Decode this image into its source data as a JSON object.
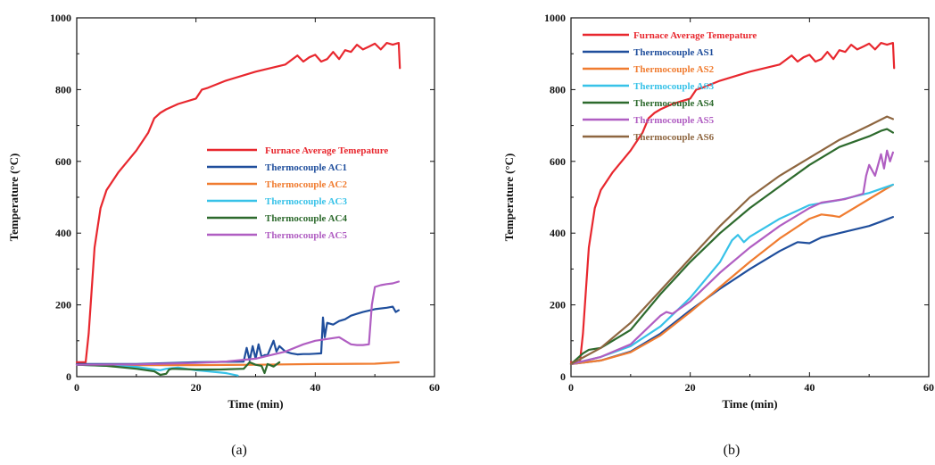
{
  "chart_data": [
    {
      "type": "line",
      "caption": "(a)",
      "xlabel": "Time (min)",
      "ylabel": "Temperature (°C)",
      "xlim": [
        0,
        60
      ],
      "ylim": [
        0,
        1000
      ],
      "xticks": [
        "0",
        "20",
        "40",
        "60"
      ],
      "yticks": [
        "0",
        "200",
        "400",
        "600",
        "800",
        "1000"
      ],
      "legend_position": "center-right",
      "series": [
        {
          "name": "Furnace Average Temepature",
          "color": "#e8272e",
          "x": [
            0,
            1.5,
            2,
            3,
            4,
            5,
            7,
            10,
            12,
            13,
            14,
            15,
            17,
            20,
            21,
            22,
            25,
            30,
            35,
            37,
            38,
            39,
            40,
            41,
            42,
            43,
            44,
            45,
            46,
            47,
            48,
            49,
            50,
            51,
            52,
            53,
            54,
            54.2
          ],
          "y": [
            40,
            40,
            120,
            360,
            470,
            520,
            570,
            630,
            680,
            720,
            735,
            745,
            760,
            775,
            800,
            805,
            825,
            850,
            870,
            895,
            878,
            890,
            897,
            878,
            885,
            905,
            885,
            910,
            905,
            925,
            912,
            920,
            928,
            912,
            930,
            925,
            930,
            860
          ]
        },
        {
          "name": "Thermocouple AC1",
          "color": "#1f4e9c",
          "x": [
            0,
            10,
            20,
            28,
            28.5,
            29,
            29.5,
            30,
            30.5,
            31,
            31.5,
            32,
            33,
            33.5,
            34,
            35,
            36,
            37,
            38,
            39,
            40,
            41,
            41.3,
            41.6,
            42,
            43,
            44,
            45,
            46,
            47,
            48,
            50,
            52,
            53,
            53.5,
            54
          ],
          "y": [
            35,
            35,
            40,
            42,
            80,
            45,
            85,
            50,
            90,
            55,
            60,
            60,
            100,
            70,
            85,
            70,
            65,
            62,
            63,
            63,
            64,
            65,
            165,
            110,
            150,
            145,
            155,
            160,
            170,
            175,
            180,
            188,
            192,
            195,
            180,
            185
          ]
        },
        {
          "name": "Thermocouple AC2",
          "color": "#f07c30",
          "x": [
            0,
            10,
            20,
            30,
            40,
            50,
            54
          ],
          "y": [
            33,
            32,
            32,
            33,
            35,
            36,
            40
          ]
        },
        {
          "name": "Thermocouple AC3",
          "color": "#37c2e8",
          "x": [
            0,
            5,
            10,
            14,
            15,
            17,
            20,
            22,
            25,
            27
          ],
          "y": [
            33,
            30,
            27,
            18,
            22,
            25,
            18,
            15,
            10,
            3
          ]
        },
        {
          "name": "Thermocouple AC4",
          "color": "#2d6a2d",
          "x": [
            0,
            5,
            10,
            13,
            14,
            15,
            15.5,
            16,
            20,
            24,
            28,
            29,
            30,
            31,
            31.5,
            32,
            33,
            34
          ],
          "y": [
            33,
            30,
            22,
            15,
            5,
            8,
            20,
            22,
            20,
            20,
            22,
            40,
            33,
            30,
            10,
            35,
            28,
            40
          ]
        },
        {
          "name": "Thermocouple AC5",
          "color": "#b05ec2",
          "x": [
            0,
            10,
            20,
            25,
            30,
            35,
            38,
            40,
            44,
            46,
            47,
            48,
            49,
            49.5,
            50,
            51,
            52,
            53,
            54
          ],
          "y": [
            33,
            34,
            38,
            42,
            50,
            70,
            90,
            100,
            110,
            90,
            88,
            88,
            90,
            200,
            250,
            255,
            258,
            260,
            265
          ]
        }
      ]
    },
    {
      "type": "line",
      "caption": "(b)",
      "xlabel": "Time (min)",
      "ylabel": "Temperature (°C)",
      "xlim": [
        0,
        60
      ],
      "ylim": [
        0,
        1000
      ],
      "xticks": [
        "0",
        "20",
        "40",
        "60"
      ],
      "yticks": [
        "0",
        "200",
        "400",
        "600",
        "800",
        "1000"
      ],
      "legend_position": "top-left",
      "series": [
        {
          "name": "Furnace Average Temepature",
          "color": "#e8272e",
          "x": [
            0,
            1.5,
            2,
            3,
            4,
            5,
            7,
            10,
            12,
            13,
            14,
            15,
            17,
            20,
            21,
            22,
            25,
            30,
            35,
            37,
            38,
            39,
            40,
            41,
            42,
            43,
            44,
            45,
            46,
            47,
            48,
            49,
            50,
            51,
            52,
            53,
            54,
            54.2
          ],
          "y": [
            40,
            40,
            120,
            360,
            470,
            520,
            570,
            630,
            680,
            720,
            735,
            745,
            760,
            775,
            800,
            805,
            825,
            850,
            870,
            895,
            878,
            890,
            897,
            878,
            885,
            905,
            885,
            910,
            905,
            925,
            912,
            920,
            928,
            912,
            930,
            925,
            930,
            860
          ]
        },
        {
          "name": "Thermocouple AS1",
          "color": "#1f4e9c",
          "x": [
            0,
            5,
            10,
            15,
            20,
            25,
            30,
            35,
            38,
            40,
            42,
            45,
            50,
            52,
            54
          ],
          "y": [
            35,
            45,
            70,
            120,
            185,
            245,
            300,
            350,
            375,
            372,
            388,
            400,
            420,
            432,
            445
          ]
        },
        {
          "name": "Thermocouple AS2",
          "color": "#f07c30",
          "x": [
            0,
            5,
            10,
            15,
            20,
            25,
            30,
            35,
            40,
            42,
            44,
            45,
            50,
            54
          ],
          "y": [
            35,
            45,
            68,
            115,
            180,
            250,
            320,
            385,
            440,
            452,
            448,
            445,
            495,
            535
          ]
        },
        {
          "name": "Thermocouple AS3",
          "color": "#37c2e8",
          "x": [
            0,
            5,
            10,
            15,
            20,
            25,
            27,
            28,
            29,
            30,
            35,
            40,
            45,
            50,
            54
          ],
          "y": [
            35,
            55,
            85,
            140,
            220,
            320,
            380,
            395,
            375,
            390,
            440,
            478,
            492,
            512,
            535
          ]
        },
        {
          "name": "Thermocouple AS4",
          "color": "#2d6a2d",
          "x": [
            0,
            2,
            3,
            5,
            10,
            15,
            20,
            25,
            30,
            35,
            40,
            45,
            50,
            52,
            53,
            54
          ],
          "y": [
            35,
            65,
            75,
            80,
            130,
            230,
            320,
            400,
            470,
            530,
            590,
            640,
            670,
            685,
            690,
            680
          ]
        },
        {
          "name": "Thermocouple AS5",
          "color": "#b05ec2",
          "x": [
            0,
            5,
            10,
            15,
            16,
            17,
            20,
            25,
            30,
            35,
            40,
            42,
            44,
            46,
            48,
            49,
            49.5,
            50,
            51,
            52,
            52.5,
            53,
            53.5,
            54
          ],
          "y": [
            35,
            55,
            90,
            170,
            180,
            175,
            210,
            290,
            360,
            420,
            470,
            485,
            490,
            495,
            505,
            510,
            560,
            590,
            560,
            620,
            580,
            630,
            600,
            625
          ]
        },
        {
          "name": "Thermocouple AS6",
          "color": "#8e6640",
          "x": [
            0,
            5,
            10,
            15,
            20,
            25,
            30,
            35,
            40,
            45,
            50,
            53,
            54
          ],
          "y": [
            35,
            80,
            150,
            240,
            330,
            420,
            500,
            560,
            610,
            660,
            700,
            725,
            718
          ]
        }
      ]
    }
  ]
}
